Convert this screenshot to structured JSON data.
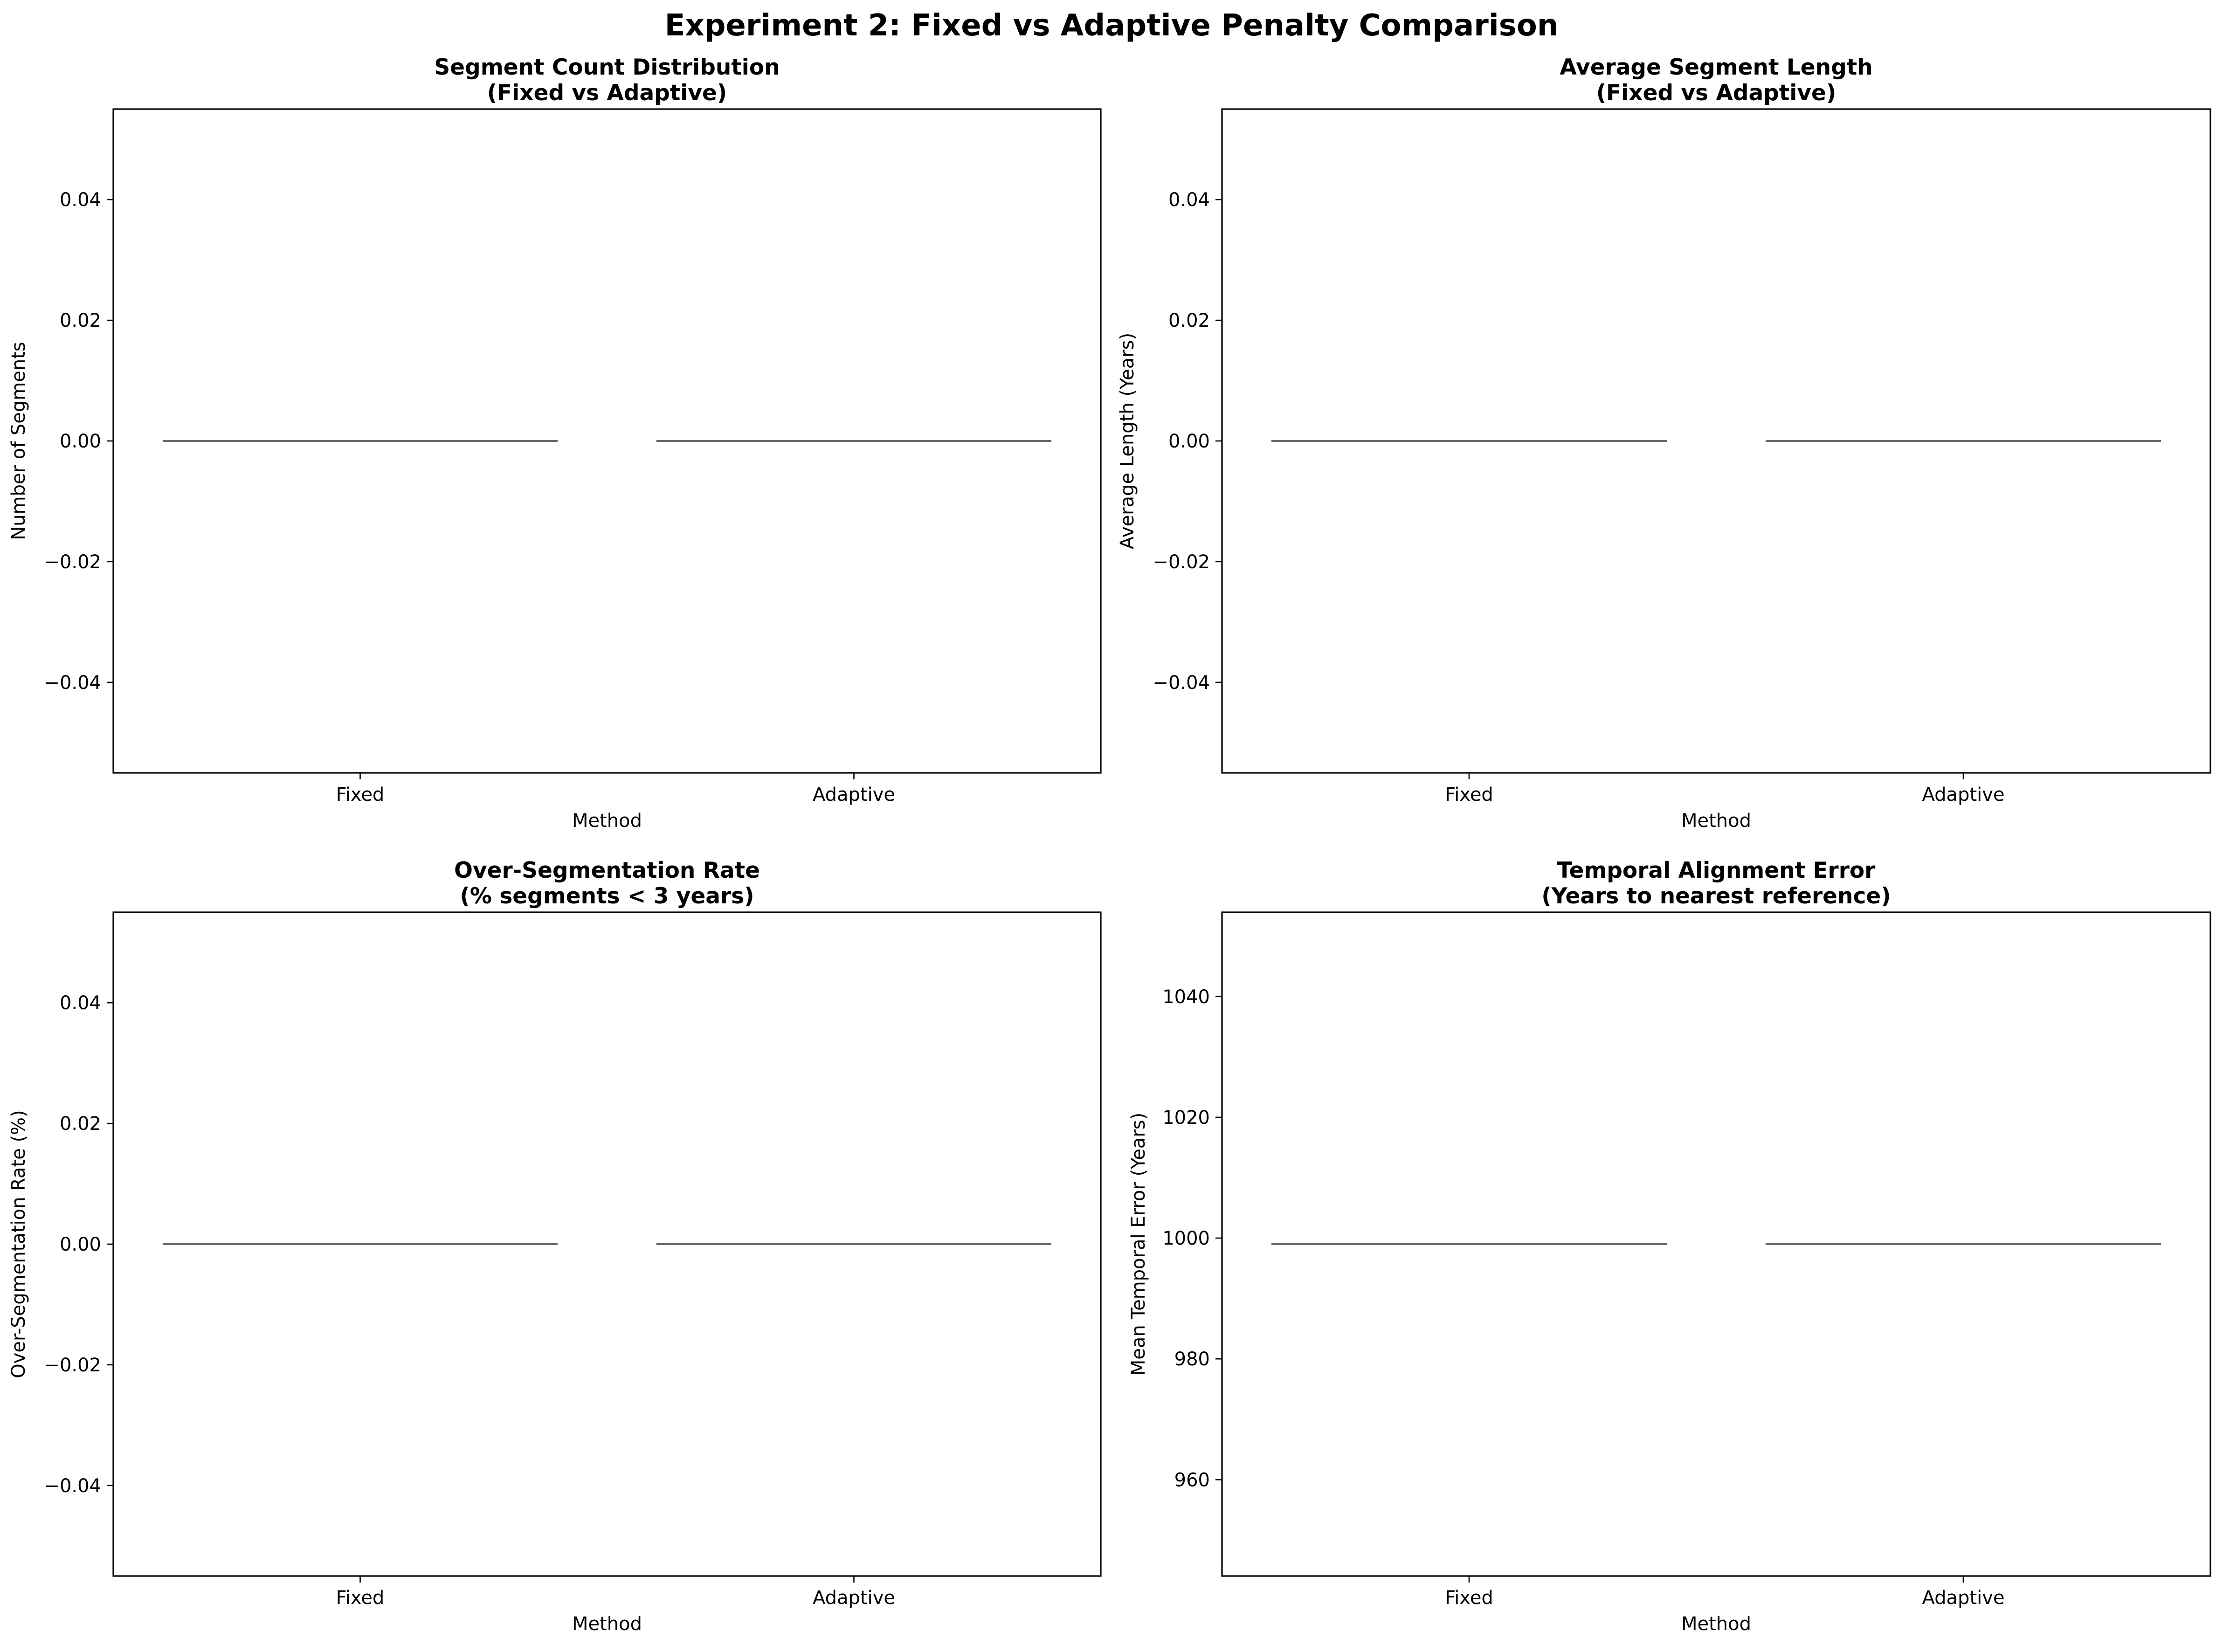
{
  "figure": {
    "title": "Experiment 2: Fixed vs Adaptive Penalty Comparison"
  },
  "chart_data": [
    {
      "type": "box",
      "title": "Segment Count Distribution\n(Fixed vs Adaptive)",
      "xlabel": "Method",
      "ylabel": "Number of Segments",
      "categories": [
        "Fixed",
        "Adaptive"
      ],
      "values": [
        0,
        0
      ],
      "ylim": [
        -0.055,
        0.055
      ],
      "yticks": [
        -0.04,
        -0.02,
        0.0,
        0.02,
        0.04
      ],
      "ytick_labels": [
        "−0.04",
        "−0.02",
        "0.00",
        "0.02",
        "0.04"
      ],
      "grid": false
    },
    {
      "type": "box",
      "title": "Average Segment Length\n(Fixed vs Adaptive)",
      "xlabel": "Method",
      "ylabel": "Average Length (Years)",
      "categories": [
        "Fixed",
        "Adaptive"
      ],
      "values": [
        0,
        0
      ],
      "ylim": [
        -0.055,
        0.055
      ],
      "yticks": [
        -0.04,
        -0.02,
        0.0,
        0.02,
        0.04
      ],
      "ytick_labels": [
        "−0.04",
        "−0.02",
        "0.00",
        "0.02",
        "0.04"
      ],
      "grid": false
    },
    {
      "type": "box",
      "title": "Over-Segmentation Rate\n(% segments < 3 years)",
      "xlabel": "Method",
      "ylabel": "Over-Segmentation Rate (%)",
      "categories": [
        "Fixed",
        "Adaptive"
      ],
      "values": [
        0,
        0
      ],
      "ylim": [
        -0.055,
        0.055
      ],
      "yticks": [
        -0.04,
        -0.02,
        0.0,
        0.02,
        0.04
      ],
      "ytick_labels": [
        "−0.04",
        "−0.02",
        "0.00",
        "0.02",
        "0.04"
      ],
      "grid": false
    },
    {
      "type": "box",
      "title": "Temporal Alignment Error\n(Years to nearest reference)",
      "xlabel": "Method",
      "ylabel": "Mean Temporal Error (Years)",
      "categories": [
        "Fixed",
        "Adaptive"
      ],
      "values": [
        999,
        999
      ],
      "ylim": [
        944.05,
        1053.95
      ],
      "yticks": [
        960,
        980,
        1000,
        1020,
        1040
      ],
      "ytick_labels": [
        "960",
        "980",
        "1000",
        "1020",
        "1040"
      ],
      "grid": false
    }
  ]
}
